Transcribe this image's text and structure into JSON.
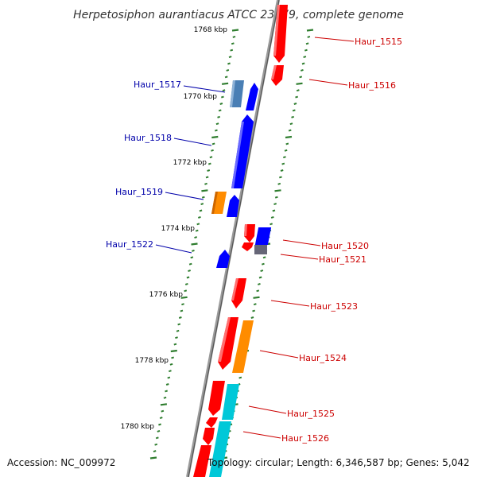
{
  "title": "Herpetosiphon aurantiacus ATCC 23779, complete genome",
  "footer": {
    "accession": "Accession: NC_009972",
    "topology": "Topology: circular; Length: 6,346,587 bp; Genes: 5,042"
  },
  "scale": {
    "ticks": [
      {
        "label": "1768 kbp"
      },
      {
        "label": "1770 kbp"
      },
      {
        "label": "1772 kbp"
      },
      {
        "label": "1774 kbp"
      },
      {
        "label": "1776 kbp"
      },
      {
        "label": "1778 kbp"
      },
      {
        "label": "1780 kbp"
      }
    ]
  },
  "colors": {
    "backbone": "#888888",
    "forward_label": "#0000aa",
    "reverse_label": "#cc0000",
    "tick_dash": "#2e7d2e",
    "red": "#ff0000",
    "blue": "#0000ff",
    "steel": "#4a7fb5",
    "orange": "#ff8c00",
    "gray": "#666677",
    "cyan": "#00c8d8"
  },
  "genes": {
    "forward": [
      {
        "id": "Haur_1517"
      },
      {
        "id": "Haur_1518"
      },
      {
        "id": "Haur_1519"
      },
      {
        "id": "Haur_1522"
      }
    ],
    "reverse": [
      {
        "id": "Haur_1515"
      },
      {
        "id": "Haur_1516"
      },
      {
        "id": "Haur_1520"
      },
      {
        "id": "Haur_1521"
      },
      {
        "id": "Haur_1523"
      },
      {
        "id": "Haur_1524"
      },
      {
        "id": "Haur_1525"
      },
      {
        "id": "Haur_1526"
      }
    ]
  }
}
